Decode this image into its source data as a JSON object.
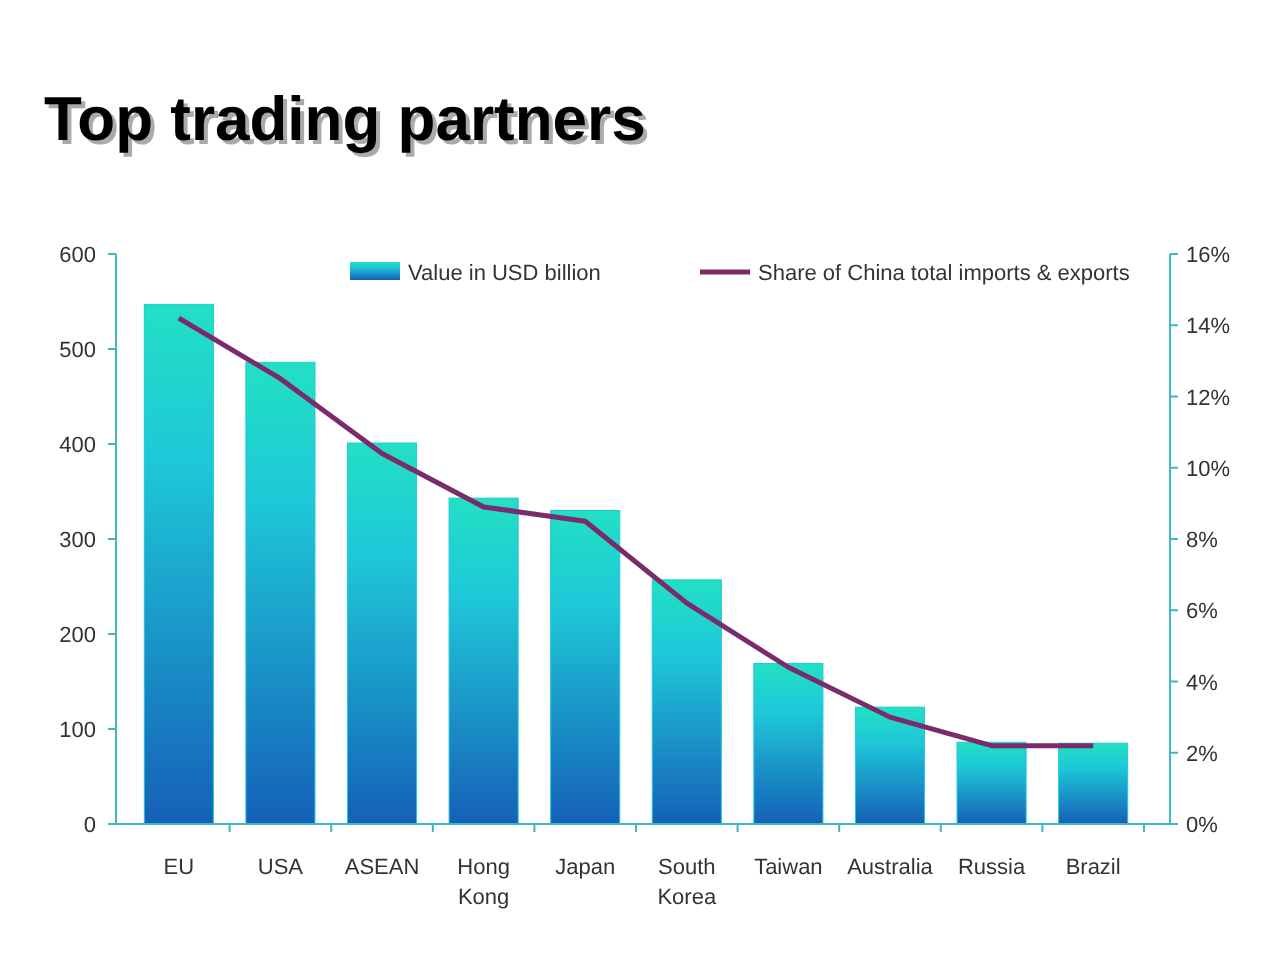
{
  "chart_data": {
    "type": "bar",
    "title": "Top trading partners",
    "categories": [
      "EU",
      "USA",
      "ASEAN",
      "Hong Kong",
      "Japan",
      "South Korea",
      "Taiwan",
      "Australia",
      "Russia",
      "Brazil"
    ],
    "series": [
      {
        "name": "Value in USD billion",
        "color": "#1ec8d8",
        "values": [
          547,
          486,
          401,
          343,
          330,
          257,
          169,
          123,
          86,
          85
        ]
      },
      {
        "name": "Share of China total imports & exports",
        "type": "line",
        "axis": "y2",
        "color": "#7b2a6b",
        "values": [
          14.2,
          12.5,
          10.4,
          8.9,
          8.5,
          6.2,
          4.4,
          3.0,
          2.2,
          2.2
        ]
      }
    ],
    "ylim": [
      0,
      600
    ],
    "yticks": [
      0,
      100,
      200,
      300,
      400,
      500,
      600
    ],
    "y2lim": [
      0,
      16
    ],
    "y2ticks": [
      {
        "value": 0,
        "label": "0%"
      },
      {
        "value": 2,
        "label": "2%"
      },
      {
        "value": 4,
        "label": "4%"
      },
      {
        "value": 6,
        "label": "6%"
      },
      {
        "value": 8,
        "label": "8%"
      },
      {
        "value": 10,
        "label": "10%"
      },
      {
        "value": 12,
        "label": "12%"
      },
      {
        "value": 14,
        "label": "14%"
      },
      {
        "value": 16,
        "label": "16%"
      }
    ],
    "legend": "top",
    "grid": false,
    "marker": "none",
    "line_style": "solid"
  }
}
